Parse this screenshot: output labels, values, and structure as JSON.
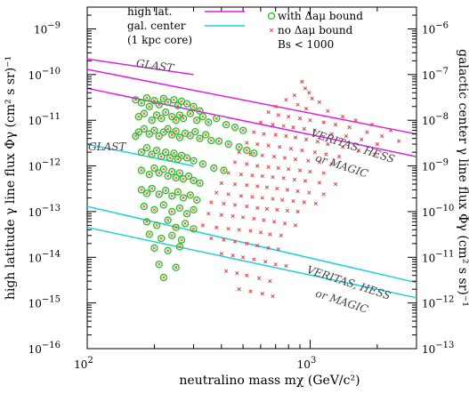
{
  "chart_data": {
    "type": "scatter",
    "x_scale": "log",
    "y_scale": "log",
    "xlim": [
      100,
      3000
    ],
    "ylim": [
      1e-16,
      3e-09
    ],
    "y2_ratio": 1000,
    "grid": false,
    "xlabel": "neutralino mass mχ (GeV/c²)",
    "ylabel": "high latitude γ line flux Φγ (cm² s sr)⁻¹",
    "y2label": "galactic center γ line flux Φγ (cm² s sr)⁻¹",
    "x_ticks": [
      {
        "value": 100,
        "base": "10",
        "exp": "2"
      },
      {
        "value": 1000,
        "base": "10",
        "exp": "3"
      }
    ],
    "y_ticks": [
      {
        "value": 1e-09,
        "base": "10",
        "exp": "−9"
      },
      {
        "value": 1e-10,
        "base": "10",
        "exp": "−10"
      },
      {
        "value": 1e-11,
        "base": "10",
        "exp": "−11"
      },
      {
        "value": 1e-12,
        "base": "10",
        "exp": "−12"
      },
      {
        "value": 1e-13,
        "base": "10",
        "exp": "−13"
      },
      {
        "value": 1e-14,
        "base": "10",
        "exp": "−14"
      },
      {
        "value": 1e-15,
        "base": "10",
        "exp": "−15"
      },
      {
        "value": 1e-16,
        "base": "10",
        "exp": "−16"
      }
    ],
    "y2_ticks": [
      {
        "value": 1e-06,
        "base": "10",
        "exp": "−6"
      },
      {
        "value": 1e-07,
        "base": "10",
        "exp": "−7"
      },
      {
        "value": 1e-08,
        "base": "10",
        "exp": "−8"
      },
      {
        "value": 1e-09,
        "base": "10",
        "exp": "−9"
      },
      {
        "value": 1e-10,
        "base": "10",
        "exp": "−10"
      },
      {
        "value": 1e-11,
        "base": "10",
        "exp": "−11"
      },
      {
        "value": 1e-12,
        "base": "10",
        "exp": "−12"
      },
      {
        "value": 1e-13,
        "base": "10",
        "exp": "−13"
      }
    ],
    "legend": {
      "placement": "top",
      "lines": [
        {
          "label": "high lat.",
          "color": "#e020e0"
        },
        {
          "label": "gal. center",
          "color": "#20d0e0"
        },
        {
          "label": "(1 kpc core)",
          "color": ""
        }
      ],
      "markers": [
        {
          "label": "with Δaμ bound",
          "color": "#20c020",
          "shape": "circle"
        },
        {
          "label": "no Δaμ bound",
          "color": "#e04040",
          "shape": "cross"
        },
        {
          "label": "Bs < 1000",
          "color": "",
          "shape": "none"
        }
      ]
    },
    "series": [
      {
        "kind": "line",
        "color": "#e020e0",
        "x": [
          100,
          300
        ],
        "y": [
          2.2e-10,
          1e-10
        ]
      },
      {
        "kind": "line",
        "color": "#e020e0",
        "x": [
          100,
          3000
        ],
        "y": [
          1.3e-10,
          5e-12
        ]
      },
      {
        "kind": "line",
        "color": "#e020e0",
        "x": [
          100,
          3000
        ],
        "y": [
          5e-11,
          1.6e-12
        ]
      },
      {
        "kind": "line",
        "color": "#20d0e0",
        "x": [
          100,
          300
        ],
        "y": [
          3e-12,
          1e-12
        ]
      },
      {
        "kind": "line",
        "color": "#20d0e0",
        "x": [
          100,
          3000
        ],
        "y": [
          1.3e-13,
          2.8e-15
        ]
      },
      {
        "kind": "line",
        "color": "#20d0e0",
        "x": [
          100,
          3000
        ],
        "y": [
          4.5e-14,
          1.3e-15
        ]
      }
    ],
    "annotations": [
      {
        "text": "GLAST",
        "x": 165,
        "y": 1.5e-10
      },
      {
        "text": "GLAST",
        "x": 101,
        "y": 2.2e-12
      },
      {
        "text": "VERITAS, HESS",
        "x": 1000,
        "y": 4.5e-12
      },
      {
        "text": "or MAGIC",
        "x": 1050,
        "y": 1.3e-12
      },
      {
        "text": "VERITAS, HESS",
        "x": 960,
        "y": 4.6e-15
      },
      {
        "text": "or MAGIC",
        "x": 1050,
        "y": 1.4e-15
      }
    ],
    "scatter_with_bound": {
      "color": "#20c020",
      "x": [
        165,
        175,
        185,
        190,
        200,
        210,
        220,
        230,
        245,
        255,
        265,
        280,
        300,
        320,
        170,
        180,
        195,
        205,
        215,
        225,
        240,
        250,
        260,
        270,
        290,
        310,
        330,
        350,
        380,
        420,
        460,
        500,
        165,
        170,
        180,
        190,
        200,
        210,
        220,
        230,
        240,
        250,
        260,
        275,
        290,
        305,
        320,
        340,
        360,
        390,
        430,
        480,
        520,
        560,
        175,
        185,
        195,
        205,
        215,
        225,
        235,
        245,
        255,
        265,
        280,
        300,
        330,
        370,
        410,
        175,
        190,
        200,
        210,
        220,
        230,
        240,
        250,
        260,
        270,
        285,
        300,
        320,
        175,
        185,
        195,
        210,
        225,
        240,
        255,
        270,
        290,
        310,
        180,
        200,
        220,
        240,
        260,
        280,
        300,
        185,
        205,
        230,
        250,
        275,
        300,
        190,
        215,
        240,
        265,
        200,
        230,
        260,
        210,
        250,
        220
      ],
      "y": [
        2.8e-11,
        2.4e-11,
        3.1e-11,
        2e-11,
        2.7e-11,
        2.2e-11,
        3e-11,
        2.5e-11,
        2.8e-11,
        2.1e-11,
        2.6e-11,
        2.3e-11,
        2e-11,
        1.6e-11,
        1.2e-11,
        1.4e-11,
        1e-11,
        1.3e-11,
        1.1e-11,
        1.5e-11,
        1.2e-11,
        1e-11,
        1.3e-11,
        1.1e-11,
        1.4e-11,
        1e-11,
        1.2e-11,
        9e-12,
        1.1e-11,
        8e-12,
        7e-12,
        6e-12,
        4.5e-12,
        5.5e-12,
        6.5e-12,
        5e-12,
        6e-12,
        4.5e-12,
        5.5e-12,
        6.5e-12,
        4.8e-12,
        5.8e-12,
        4.2e-12,
        5.2e-12,
        4.6e-12,
        5.6e-12,
        4e-12,
        4.8e-12,
        3.6e-12,
        3.5e-12,
        3e-12,
        2.6e-12,
        2.2e-12,
        1.9e-12,
        2e-12,
        2.5e-12,
        1.8e-12,
        2.2e-12,
        1.6e-12,
        2e-12,
        1.5e-12,
        1.9e-12,
        1.4e-12,
        1.7e-12,
        1.5e-12,
        1.3e-12,
        1.1e-12,
        9e-13,
        8e-13,
        8e-13,
        6.5e-13,
        9e-13,
        7e-13,
        8.5e-13,
        6e-13,
        7.5e-13,
        5.5e-13,
        7e-13,
        5.2e-13,
        6e-13,
        4.8e-13,
        4.2e-13,
        3e-13,
        2.5e-13,
        3.2e-13,
        2.4e-13,
        2.9e-13,
        2.2e-13,
        2.7e-13,
        2e-13,
        2.3e-13,
        1.8e-13,
        1.3e-13,
        1.1e-13,
        1.4e-13,
        1e-13,
        1.2e-13,
        9e-14,
        1.1e-13,
        6e-14,
        5e-14,
        6.5e-14,
        4.5e-14,
        5.5e-14,
        4.2e-14,
        3.2e-14,
        2.6e-14,
        3e-14,
        2.4e-14,
        1.6e-14,
        1.4e-14,
        1.7e-14,
        7e-15,
        6e-15,
        3.6e-15
      ]
    },
    "scatter_no_bound": {
      "color": "#e04040",
      "x": [
        920,
        950,
        990,
        850,
        1020,
        1100,
        780,
        880,
        700,
        960,
        1200,
        1400,
        1600,
        1900,
        2300,
        650,
        720,
        800,
        900,
        1000,
        1150,
        1300,
        1500,
        1800,
        2100,
        2500,
        600,
        680,
        760,
        840,
        940,
        1050,
        1250,
        1450,
        1700,
        2000,
        560,
        620,
        700,
        780,
        860,
        960,
        1080,
        1200,
        1400,
        1650,
        1950,
        520,
        580,
        650,
        730,
        820,
        920,
        1050,
        1180,
        1350,
        480,
        540,
        610,
        690,
        770,
        860,
        980,
        1100,
        1250,
        460,
        520,
        580,
        650,
        720,
        800,
        900,
        1000,
        1150,
        430,
        490,
        550,
        610,
        680,
        760,
        850,
        950,
        1100,
        1300,
        400,
        460,
        520,
        580,
        640,
        710,
        790,
        880,
        990,
        1150,
        380,
        430,
        490,
        550,
        610,
        680,
        750,
        840,
        940,
        1060,
        360,
        410,
        460,
        520,
        580,
        640,
        710,
        790,
        880,
        350,
        400,
        450,
        500,
        560,
        620,
        690,
        770,
        860,
        330,
        380,
        430,
        480,
        540,
        600,
        660,
        740,
        360,
        410,
        460,
        520,
        580,
        650,
        720,
        400,
        450,
        500,
        560,
        630,
        700,
        780,
        420,
        470,
        520,
        590,
        660,
        480,
        540,
        610,
        680
      ],
      "y": [
        7e-11,
        5e-11,
        4e-11,
        3.5e-11,
        3e-11,
        2.5e-11,
        2.8e-11,
        2.2e-11,
        2e-11,
        1.8e-11,
        1.6e-11,
        1.2e-11,
        1e-11,
        8e-12,
        6e-12,
        1.5e-11,
        1.3e-11,
        1.2e-11,
        1.1e-11,
        1e-11,
        9e-12,
        8e-12,
        7e-12,
        5.5e-12,
        4.5e-12,
        3.5e-12,
        9e-12,
        8e-12,
        7.5e-12,
        7e-12,
        6.5e-12,
        6e-12,
        5e-12,
        4.5e-12,
        3.8e-12,
        3e-12,
        5.5e-12,
        5e-12,
        4.8e-12,
        4.5e-12,
        4.2e-12,
        3.8e-12,
        3.4e-12,
        3e-12,
        2.6e-12,
        2.2e-12,
        1.8e-12,
        3.2e-12,
        3e-12,
        2.8e-12,
        2.6e-12,
        2.4e-12,
        2.2e-12,
        2e-12,
        1.8e-12,
        1.6e-12,
        2e-12,
        1.8e-12,
        1.7e-12,
        1.6e-12,
        1.5e-12,
        1.4e-12,
        1.3e-12,
        1.2e-12,
        1.1e-12,
        1.2e-12,
        1.1e-12,
        1e-12,
        9.5e-13,
        9e-13,
        8.5e-13,
        8e-13,
        7.5e-13,
        7e-13,
        7e-13,
        6.5e-13,
        6.2e-13,
        6e-13,
        5.7e-13,
        5.4e-13,
        5e-13,
        4.7e-13,
        4.3e-13,
        4e-13,
        4.2e-13,
        4e-13,
        3.8e-13,
        3.6e-13,
        3.4e-13,
        3.2e-13,
        3e-13,
        2.8e-13,
        2.6e-13,
        2.4e-13,
        2.6e-13,
        2.4e-13,
        2.2e-13,
        2.1e-13,
        2e-13,
        1.9e-13,
        1.8e-13,
        1.7e-13,
        1.6e-13,
        1.5e-13,
        1.6e-13,
        1.5e-13,
        1.4e-13,
        1.3e-13,
        1.2e-13,
        1.15e-13,
        1.1e-13,
        1.05e-13,
        1e-13,
        9e-14,
        8.5e-14,
        8e-14,
        7.5e-14,
        7e-14,
        6.5e-14,
        6e-14,
        5.5e-14,
        5e-14,
        5e-14,
        4.5e-14,
        4.2e-14,
        4e-14,
        3.8e-14,
        3.5e-14,
        3.2e-14,
        3e-14,
        2.6e-14,
        2.4e-14,
        2.2e-14,
        2e-14,
        1.8e-14,
        1.6e-14,
        1.5e-14,
        1.2e-14,
        1.1e-14,
        1e-14,
        9e-15,
        8e-15,
        7e-15,
        6.5e-15,
        5e-15,
        4.5e-15,
        4e-15,
        3.5e-15,
        3e-15,
        2e-15,
        1.8e-15,
        1.6e-15,
        1.4e-15
      ]
    }
  }
}
